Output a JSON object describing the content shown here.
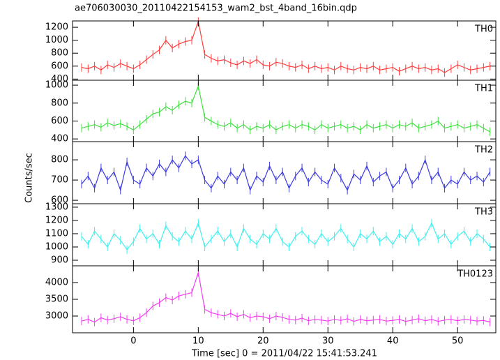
{
  "title": "ae706030030_20110422154153_wam2_bst_4band_16bin.qdp",
  "xlabel": "Time [sec] 0 = 2011/04/22 15:41:53.241",
  "ylabel": "Counts/sec",
  "chart_data": [
    {
      "type": "line",
      "label": "TH0",
      "color": "#ff3b3b",
      "x": [
        -8,
        -7,
        -6,
        -5,
        -4,
        -3,
        -2,
        -1,
        0,
        1,
        2,
        3,
        4,
        5,
        6,
        7,
        8,
        9,
        10,
        11,
        12,
        13,
        14,
        15,
        16,
        17,
        18,
        19,
        20,
        21,
        22,
        23,
        24,
        25,
        26,
        27,
        28,
        29,
        30,
        31,
        32,
        33,
        34,
        35,
        36,
        37,
        38,
        39,
        40,
        41,
        42,
        43,
        44,
        45,
        46,
        47,
        48,
        49,
        50,
        51,
        52,
        53,
        54,
        55
      ],
      "values": [
        580,
        560,
        600,
        540,
        620,
        580,
        640,
        600,
        560,
        620,
        700,
        780,
        850,
        1000,
        880,
        940,
        980,
        1000,
        1290,
        780,
        720,
        680,
        700,
        650,
        620,
        680,
        640,
        700,
        620,
        600,
        660,
        640,
        600,
        580,
        620,
        560,
        600,
        560,
        580,
        540,
        600,
        560,
        540,
        580,
        560,
        600,
        540,
        560,
        580,
        520,
        560,
        600,
        560,
        580,
        540,
        560,
        500,
        560,
        620,
        580,
        540,
        560,
        580,
        600
      ],
      "xlim": [
        -9.4,
        55.9
      ],
      "xticks": [
        0,
        10,
        20,
        30,
        40,
        50
      ],
      "ylim": [
        382,
        1298
      ],
      "yticks": [
        400,
        600,
        800,
        1000,
        1200
      ]
    },
    {
      "type": "line",
      "label": "TH1",
      "color": "#3ee03e",
      "x": [
        -8,
        -7,
        -6,
        -5,
        -4,
        -3,
        -2,
        -1,
        0,
        1,
        2,
        3,
        4,
        5,
        6,
        7,
        8,
        9,
        10,
        11,
        12,
        13,
        14,
        15,
        16,
        17,
        18,
        19,
        20,
        21,
        22,
        23,
        24,
        25,
        26,
        27,
        28,
        29,
        30,
        31,
        32,
        33,
        34,
        35,
        36,
        37,
        38,
        39,
        40,
        41,
        42,
        43,
        44,
        45,
        46,
        47,
        48,
        49,
        50,
        51,
        52,
        53,
        54,
        55
      ],
      "values": [
        520,
        540,
        560,
        530,
        580,
        550,
        570,
        540,
        500,
        560,
        620,
        680,
        700,
        760,
        720,
        780,
        820,
        800,
        990,
        640,
        600,
        560,
        540,
        580,
        520,
        560,
        500,
        540,
        520,
        560,
        500,
        540,
        560,
        520,
        560,
        540,
        500,
        560,
        520,
        540,
        560,
        520,
        540,
        500,
        560,
        520,
        540,
        560,
        520,
        560,
        540,
        580,
        520,
        540,
        560,
        600,
        520,
        540,
        560,
        520,
        540,
        560,
        520,
        480
      ],
      "xlim": [
        -9.4,
        55.9
      ],
      "xticks": [
        0,
        10,
        20,
        30,
        40,
        50
      ],
      "ylim": [
        370,
        1055
      ],
      "yticks": [
        400,
        600,
        800,
        1000
      ]
    },
    {
      "type": "line",
      "label": "TH2",
      "color": "#3a3ae0",
      "x": [
        -8,
        -7,
        -6,
        -5,
        -4,
        -3,
        -2,
        -1,
        0,
        1,
        2,
        3,
        4,
        5,
        6,
        7,
        8,
        9,
        10,
        11,
        12,
        13,
        14,
        15,
        16,
        17,
        18,
        19,
        20,
        21,
        22,
        23,
        24,
        25,
        26,
        27,
        28,
        29,
        30,
        31,
        32,
        33,
        34,
        35,
        36,
        37,
        38,
        39,
        40,
        41,
        42,
        43,
        44,
        45,
        46,
        47,
        48,
        49,
        50,
        51,
        52,
        53,
        54,
        55
      ],
      "values": [
        680,
        720,
        660,
        760,
        700,
        740,
        650,
        790,
        700,
        680,
        760,
        720,
        780,
        740,
        800,
        760,
        820,
        780,
        800,
        700,
        660,
        720,
        680,
        740,
        700,
        760,
        650,
        720,
        690,
        770,
        700,
        740,
        660,
        720,
        760,
        690,
        740,
        700,
        680,
        760,
        710,
        650,
        730,
        700,
        770,
        690,
        720,
        740,
        660,
        700,
        760,
        680,
        720,
        800,
        700,
        740,
        660,
        700,
        680,
        740,
        700,
        720,
        690,
        740
      ],
      "xlim": [
        -9.4,
        55.9
      ],
      "xticks": [
        0,
        10,
        20,
        30,
        40,
        50
      ],
      "ylim": [
        583,
        890
      ],
      "yticks": [
        600,
        700,
        800
      ]
    },
    {
      "type": "line",
      "label": "TH3",
      "color": "#3ef0f0",
      "x": [
        -8,
        -7,
        -6,
        -5,
        -4,
        -3,
        -2,
        -1,
        0,
        1,
        2,
        3,
        4,
        5,
        6,
        7,
        8,
        9,
        10,
        11,
        12,
        13,
        14,
        15,
        16,
        17,
        18,
        19,
        20,
        21,
        22,
        23,
        24,
        25,
        26,
        27,
        28,
        29,
        30,
        31,
        32,
        33,
        34,
        35,
        36,
        37,
        38,
        39,
        40,
        41,
        42,
        43,
        44,
        45,
        46,
        47,
        48,
        49,
        50,
        51,
        52,
        53,
        54,
        55
      ],
      "values": [
        1080,
        1020,
        1120,
        1060,
        1000,
        1100,
        1050,
        980,
        1040,
        1140,
        1060,
        1100,
        1020,
        1160,
        1080,
        1040,
        1120,
        1060,
        1180,
        1000,
        1060,
        1120,
        1040,
        1100,
        1000,
        1140,
        1060,
        1020,
        1100,
        1060,
        1140,
        1040,
        1000,
        1080,
        1120,
        1060,
        1020,
        1100,
        1040,
        1080,
        1140,
        1060,
        1000,
        1100,
        1060,
        1120,
        1040,
        1080,
        1020,
        1100,
        1060,
        1140,
        1040,
        1080,
        1180,
        1060,
        1100,
        1020,
        1080,
        1120,
        1040,
        1100,
        1060,
        1000
      ],
      "xlim": [
        -9.4,
        55.9
      ],
      "xticks": [
        0,
        10,
        20,
        30,
        40,
        50
      ],
      "ylim": [
        858,
        1326
      ],
      "yticks": [
        900,
        1000,
        1100,
        1200,
        1300
      ]
    },
    {
      "type": "line",
      "label": "TH0123",
      "color": "#f03ef0",
      "x": [
        -8,
        -7,
        -6,
        -5,
        -4,
        -3,
        -2,
        -1,
        0,
        1,
        2,
        3,
        4,
        5,
        6,
        7,
        8,
        9,
        10,
        11,
        12,
        13,
        14,
        15,
        16,
        17,
        18,
        19,
        20,
        21,
        22,
        23,
        24,
        25,
        26,
        27,
        28,
        29,
        30,
        31,
        32,
        33,
        34,
        35,
        36,
        37,
        38,
        39,
        40,
        41,
        42,
        43,
        44,
        45,
        46,
        47,
        48,
        49,
        50,
        51,
        52,
        53,
        54,
        55
      ],
      "values": [
        2850,
        2900,
        2820,
        2950,
        2880,
        2920,
        2980,
        2900,
        2860,
        2950,
        3100,
        3300,
        3400,
        3550,
        3480,
        3600,
        3650,
        3700,
        4300,
        3200,
        3100,
        3050,
        3000,
        3080,
        2980,
        3050,
        2950,
        3000,
        2980,
        2920,
        3000,
        2960,
        2900,
        2880,
        2940,
        2860,
        2900,
        2880,
        2850,
        2900,
        2870,
        2920,
        2840,
        2900,
        2860,
        2880,
        2900,
        2850,
        2870,
        2900,
        2840,
        2880,
        2920,
        2860,
        2900,
        2840,
        2880,
        2900,
        2860,
        2900,
        2880,
        2850,
        2870,
        2820
      ],
      "xlim": [
        -9.4,
        55.9
      ],
      "xticks": [
        0,
        10,
        20,
        30,
        40,
        50
      ],
      "ylim": [
        2500,
        4500
      ],
      "yticks": [
        3000,
        3500,
        4000
      ]
    }
  ]
}
